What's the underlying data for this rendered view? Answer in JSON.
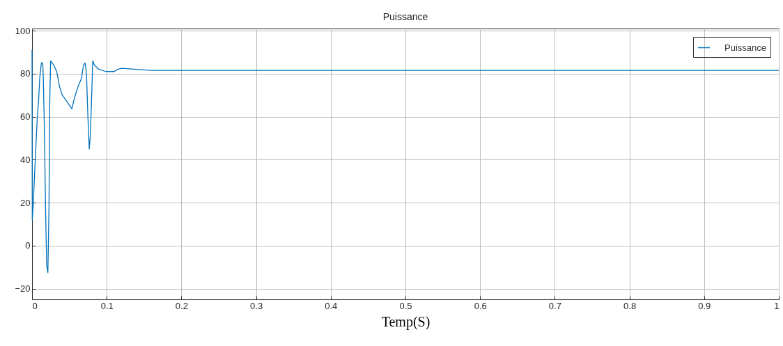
{
  "chart_data": {
    "type": "line",
    "title": "Puissance",
    "xlabel": "Temp(S)",
    "x": [
      0,
      0.0003,
      0.0016,
      0.0034,
      0.005,
      0.0069,
      0.0087,
      0.0103,
      0.0125,
      0.0143,
      0.015,
      0.0165,
      0.018,
      0.0196,
      0.0212,
      0.0227,
      0.0237,
      0.0249,
      0.029,
      0.033,
      0.0368,
      0.0405,
      0.0467,
      0.0533,
      0.057,
      0.0617,
      0.0664,
      0.0688,
      0.071,
      0.0729,
      0.0748,
      0.0766,
      0.0779,
      0.0798,
      0.0813,
      0.0835,
      0.0897,
      0.099,
      0.11,
      0.1146,
      0.12,
      0.14,
      0.16,
      1
    ],
    "series": [
      {
        "name": "Puissance",
        "color": "#0072bd",
        "values": [
          91,
          12,
          19,
          33,
          45,
          59,
          67,
          78,
          85,
          85,
          79,
          55,
          19,
          -9,
          -12.6,
          18,
          67,
          86,
          84,
          81,
          74,
          70,
          67,
          63.6,
          69,
          74,
          78,
          84,
          85,
          80,
          60,
          45,
          50.6,
          69,
          86,
          84,
          82,
          81,
          81,
          82,
          82.5,
          82,
          81.5,
          81.5
        ]
      }
    ],
    "xlim": [
      0,
      1
    ],
    "xticks": [
      0,
      0.1,
      0.2,
      0.3,
      0.4,
      0.5,
      0.6,
      0.7,
      0.8,
      0.9,
      1
    ],
    "ylim": [
      -25,
      101
    ],
    "yticks": [
      -20,
      0,
      20,
      40,
      60,
      80,
      100
    ],
    "grid": true,
    "legend": "top right",
    "line_style": "solid"
  }
}
